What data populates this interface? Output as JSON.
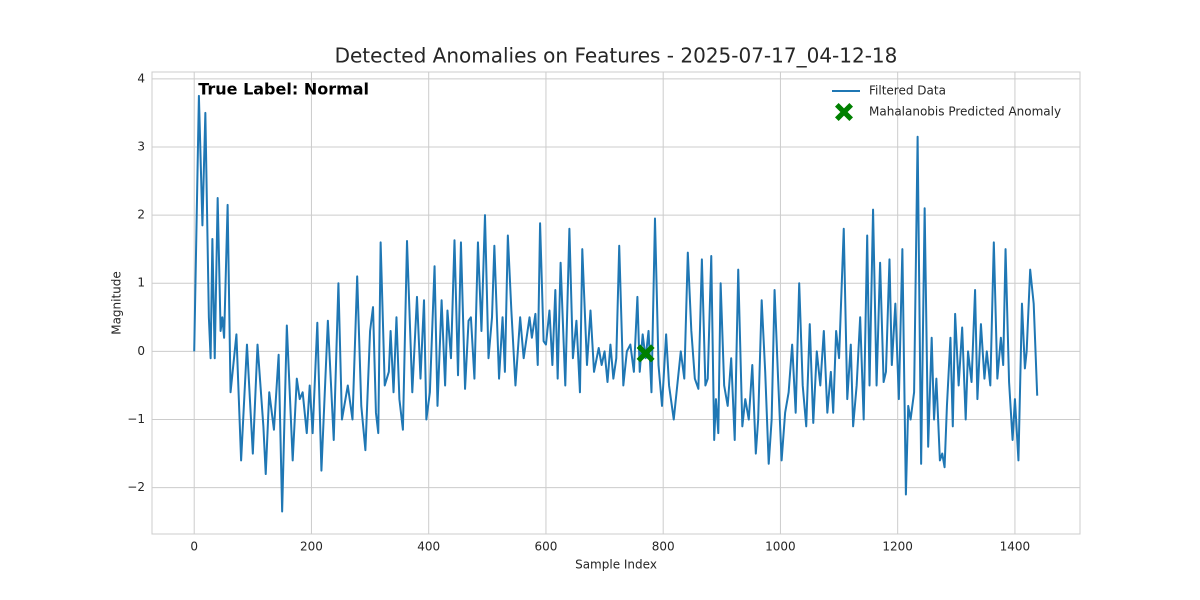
{
  "chart_data": {
    "type": "line",
    "title": "Detected Anomalies on Features - 2025-07-17_04-12-18",
    "xlabel": "Sample Index",
    "ylabel": "Magnitude",
    "annotation": "True Label: Normal",
    "xlim": [
      -72,
      1511
    ],
    "ylim": [
      -2.68,
      4.1
    ],
    "xticks": [
      0,
      200,
      400,
      600,
      800,
      1000,
      1200,
      1400
    ],
    "yticks": [
      {
        "value": -2,
        "label": "−2"
      },
      {
        "value": -1,
        "label": "−1"
      },
      0,
      1,
      2,
      3,
      4
    ],
    "grid": true,
    "legend": "upper right",
    "series": [
      {
        "name": "Filtered Data",
        "type": "line",
        "color": "#1f77b4",
        "x": [
          0,
          8,
          14,
          19,
          25,
          28,
          31,
          35,
          40,
          45,
          48,
          51,
          57,
          62,
          72,
          80,
          90,
          100,
          108,
          118,
          122,
          128,
          136,
          144,
          150,
          158,
          168,
          175,
          180,
          185,
          192,
          197,
          202,
          210,
          217,
          228,
          238,
          246,
          252,
          258,
          262,
          270,
          278,
          285,
          292,
          300,
          305,
          310,
          314,
          318,
          325,
          332,
          335,
          340,
          345,
          350,
          356,
          363,
          372,
          380,
          386,
          392,
          396,
          402,
          410,
          415,
          422,
          428,
          432,
          438,
          444,
          450,
          455,
          462,
          468,
          472,
          478,
          484,
          490,
          496,
          502,
          508,
          512,
          520,
          526,
          530,
          535,
          541,
          548,
          556,
          562,
          567,
          572,
          576,
          582,
          586,
          590,
          596,
          600,
          606,
          611,
          616,
          620,
          625,
          633,
          640,
          646,
          652,
          658,
          662,
          670,
          676,
          682,
          690,
          695,
          700,
          705,
          710,
          715,
          720,
          725,
          732,
          738,
          744,
          750,
          756,
          760,
          765,
          770,
          775,
          780,
          786,
          792,
          798,
          805,
          810,
          818,
          824,
          830,
          836,
          842,
          848,
          854,
          860,
          866,
          872,
          876,
          882,
          887,
          890,
          894,
          898,
          904,
          910,
          916,
          922,
          928,
          935,
          940,
          946,
          952,
          958,
          962,
          968,
          974,
          980,
          985,
          990,
          996,
          1002,
          1008,
          1014,
          1020,
          1026,
          1032,
          1038,
          1044,
          1050,
          1056,
          1062,
          1068,
          1074,
          1080,
          1086,
          1090,
          1095,
          1100,
          1108,
          1114,
          1120,
          1124,
          1130,
          1136,
          1142,
          1148,
          1152,
          1158,
          1164,
          1170,
          1176,
          1180,
          1186,
          1190,
          1196,
          1202,
          1208,
          1214,
          1218,
          1222,
          1228,
          1234,
          1240,
          1246,
          1252,
          1258,
          1262,
          1266,
          1272,
          1276,
          1280,
          1284,
          1290,
          1294,
          1298,
          1304,
          1310,
          1316,
          1320,
          1326,
          1332,
          1336,
          1342,
          1348,
          1352,
          1358,
          1364,
          1370,
          1376,
          1380,
          1384,
          1390,
          1396,
          1400,
          1406,
          1412,
          1417,
          1420,
          1426,
          1432,
          1438
        ],
        "values": [
          0,
          3.75,
          1.85,
          3.5,
          0.5,
          -0.1,
          1.65,
          -0.1,
          2.25,
          0.3,
          0.5,
          0.2,
          2.15,
          -0.6,
          0.25,
          -1.6,
          0.1,
          -1.5,
          0.1,
          -1.1,
          -1.8,
          -0.6,
          -1.15,
          -0.05,
          -2.35,
          0.38,
          -1.6,
          -0.4,
          -0.7,
          -0.6,
          -1.2,
          -0.5,
          -1.2,
          0.42,
          -1.75,
          0.45,
          -1.3,
          1.0,
          -1.0,
          -0.7,
          -0.5,
          -1.0,
          1.1,
          -0.8,
          -1.45,
          0.3,
          0.65,
          -0.9,
          -1.2,
          1.6,
          -0.5,
          -0.3,
          0.3,
          -0.6,
          0.5,
          -0.7,
          -1.15,
          1.62,
          -0.6,
          0.8,
          -0.4,
          0.75,
          -1.0,
          -0.6,
          1.25,
          -0.8,
          0.75,
          -0.5,
          0.6,
          -0.1,
          1.63,
          -0.35,
          1.6,
          -0.55,
          0.45,
          0.5,
          -0.4,
          1.6,
          0.3,
          2.0,
          -0.1,
          0.5,
          1.55,
          -0.4,
          0.5,
          -0.3,
          1.7,
          0.6,
          -0.5,
          0.5,
          -0.1,
          0.2,
          0.5,
          0.2,
          0.55,
          -0.2,
          1.88,
          0.15,
          0.1,
          0.6,
          -0.2,
          0.9,
          -0.4,
          1.3,
          -0.5,
          1.8,
          -0.1,
          0.45,
          -0.6,
          1.5,
          -0.2,
          0.6,
          -0.3,
          0.05,
          -0.2,
          0.0,
          -0.45,
          0.1,
          -0.4,
          -0.1,
          1.55,
          -0.5,
          0.0,
          0.1,
          -0.3,
          0.8,
          -0.3,
          0.25,
          -0.1,
          0.3,
          -0.6,
          1.95,
          -0.2,
          -0.8,
          0.25,
          -0.5,
          -1.0,
          -0.5,
          0.0,
          -0.4,
          1.45,
          0.3,
          -0.4,
          -0.55,
          1.35,
          -0.5,
          -0.4,
          1.4,
          -1.3,
          -0.7,
          -1.2,
          1.0,
          -0.5,
          -0.8,
          -0.1,
          -1.3,
          1.2,
          -1.1,
          -0.7,
          -1.0,
          -0.2,
          -1.5,
          -1.0,
          0.75,
          -0.3,
          -1.65,
          -1.0,
          0.9,
          -0.4,
          -1.6,
          -0.9,
          -0.6,
          0.1,
          -0.9,
          1.0,
          -0.5,
          -1.1,
          0.4,
          -1.05,
          0.0,
          -0.5,
          0.3,
          -0.9,
          -0.3,
          -0.9,
          0.3,
          -0.1,
          1.8,
          -0.7,
          0.1,
          -1.1,
          -0.5,
          0.5,
          -1.0,
          1.7,
          -0.5,
          2.08,
          -0.5,
          1.3,
          -0.45,
          -0.3,
          1.35,
          -0.2,
          0.7,
          -0.7,
          1.5,
          -2.1,
          -0.8,
          -1.0,
          -0.6,
          3.15,
          -1.65,
          2.1,
          -1.4,
          0.2,
          -1.0,
          -0.4,
          -1.6,
          -1.5,
          -1.7,
          -0.8,
          0.2,
          -1.1,
          0.55,
          -0.5,
          0.35,
          -1.0,
          0.0,
          -0.45,
          0.9,
          -0.7,
          0.4,
          -0.4,
          0.0,
          -0.5,
          1.6,
          -0.4,
          0.2,
          -0.2,
          1.5,
          -0.45,
          -1.3,
          -0.7,
          -1.6,
          0.7,
          -0.25,
          0.0,
          1.2,
          0.7,
          -0.65
        ]
      },
      {
        "name": "Mahalanobis Predicted Anomaly",
        "type": "scatter",
        "color": "#008000",
        "x": [
          770
        ],
        "values": [
          -0.03
        ]
      }
    ]
  }
}
